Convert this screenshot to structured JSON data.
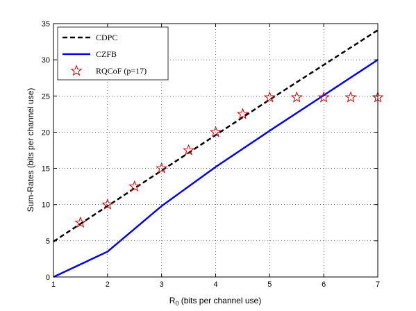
{
  "chart_data": {
    "type": "line",
    "xlabel_main": "R",
    "xlabel_sub": "0",
    "xlabel_rest": " (bits per channel use)",
    "ylabel": "Sum-Rates (bits per channel use)",
    "xlim": [
      1,
      7
    ],
    "ylim": [
      0,
      35
    ],
    "xticks": [
      1,
      2,
      3,
      4,
      5,
      6,
      7
    ],
    "yticks": [
      0,
      5,
      10,
      15,
      20,
      25,
      30,
      35
    ],
    "grid": true,
    "legend_position": "top-left",
    "series": [
      {
        "name": "CDPC",
        "style": "dashed-line",
        "color": "#000000",
        "x": [
          1,
          2,
          3,
          4,
          5,
          6,
          7
        ],
        "y": [
          4.9,
          9.8,
          14.7,
          19.6,
          24.5,
          29.3,
          34.1
        ]
      },
      {
        "name": "CZFB",
        "style": "solid-line",
        "color": "#0000ee",
        "x": [
          1,
          2,
          3,
          4,
          5,
          6,
          7
        ],
        "y": [
          0,
          3.5,
          9.8,
          15.2,
          20.2,
          25.1,
          30.0
        ]
      },
      {
        "name": "RQCoF (p=17)",
        "style": "star-markers",
        "color": "#cc0000",
        "x": [
          1.5,
          2,
          2.5,
          3,
          3.5,
          4,
          4.5,
          5,
          5.5,
          6,
          6.5,
          7
        ],
        "y": [
          7.5,
          10,
          12.5,
          15,
          17.5,
          20,
          22.5,
          24.8,
          24.8,
          24.8,
          24.8,
          24.8
        ]
      }
    ]
  }
}
